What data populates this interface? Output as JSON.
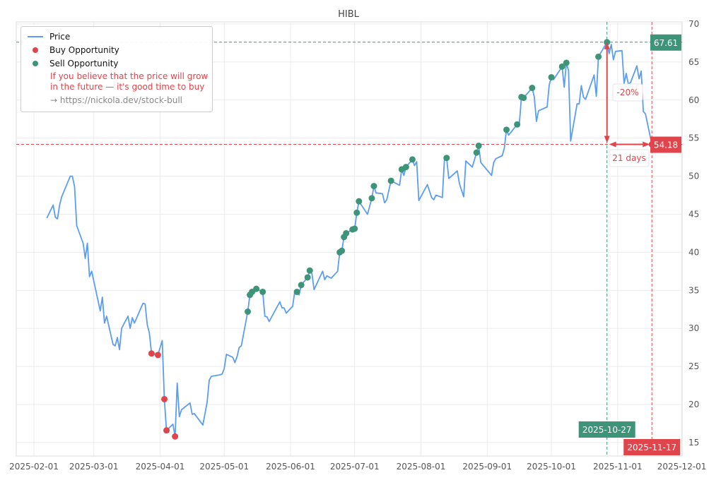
{
  "chart_data": {
    "type": "line",
    "title": "HIBL",
    "xlabel": "",
    "ylabel": "",
    "ylim": [
      13.5,
      70.3
    ],
    "xlim": [
      "2025-01-23",
      "2025-12-01"
    ],
    "y_ticks": [
      15,
      20,
      25,
      30,
      35,
      40,
      45,
      50,
      55,
      60,
      65,
      70
    ],
    "x_ticks": [
      "2025-02-01",
      "2025-03-01",
      "2025-04-01",
      "2025-05-01",
      "2025-06-01",
      "2025-07-01",
      "2025-08-01",
      "2025-09-01",
      "2025-10-01",
      "2025-11-01",
      "2025-12-01"
    ],
    "grid": true,
    "legend_placement": "top-left",
    "colors": {
      "price": "#5b9df0",
      "buy": "#e0454b",
      "sell": "#3d9479"
    },
    "legend": {
      "price": "Price",
      "buy": "Buy Opportunity",
      "sell": "Sell Opportunity",
      "note_line1": "If you believe that the price will grow",
      "note_line2": "in the future — it's good time to buy",
      "link": "→ https://nickola.dev/stock-bull"
    },
    "series": [
      {
        "name": "Price",
        "points": [
          [
            "2025-02-07",
            44.5
          ],
          [
            "2025-02-10",
            46.2
          ],
          [
            "2025-02-11",
            44.6
          ],
          [
            "2025-02-12",
            44.4
          ],
          [
            "2025-02-13",
            46.2
          ],
          [
            "2025-02-14",
            47.3
          ],
          [
            "2025-02-18",
            50.0
          ],
          [
            "2025-02-19",
            50.0
          ],
          [
            "2025-02-20",
            48.6
          ],
          [
            "2025-02-21",
            43.5
          ],
          [
            "2025-02-24",
            41.2
          ],
          [
            "2025-02-25",
            39.2
          ],
          [
            "2025-02-26",
            41.2
          ],
          [
            "2025-02-27",
            36.8
          ],
          [
            "2025-02-28",
            37.5
          ],
          [
            "2025-03-04",
            32.3
          ],
          [
            "2025-03-05",
            34.1
          ],
          [
            "2025-03-06",
            30.7
          ],
          [
            "2025-03-07",
            31.6
          ],
          [
            "2025-03-10",
            27.9
          ],
          [
            "2025-03-11",
            27.7
          ],
          [
            "2025-03-12",
            28.8
          ],
          [
            "2025-03-13",
            27.2
          ],
          [
            "2025-03-14",
            30.0
          ],
          [
            "2025-03-17",
            31.6
          ],
          [
            "2025-03-18",
            30.0
          ],
          [
            "2025-03-19",
            31.4
          ],
          [
            "2025-03-20",
            30.7
          ],
          [
            "2025-03-24",
            33.3
          ],
          [
            "2025-03-25",
            33.2
          ],
          [
            "2025-03-26",
            30.5
          ],
          [
            "2025-03-27",
            29.4
          ],
          [
            "2025-03-28",
            26.7
          ],
          [
            "2025-03-31",
            26.5
          ],
          [
            "2025-04-02",
            28.4
          ],
          [
            "2025-04-03",
            20.7
          ],
          [
            "2025-04-04",
            16.6
          ],
          [
            "2025-04-07",
            17.4
          ],
          [
            "2025-04-08",
            15.8
          ],
          [
            "2025-04-09",
            22.8
          ],
          [
            "2025-04-10",
            18.4
          ],
          [
            "2025-04-11",
            19.3
          ],
          [
            "2025-04-15",
            20.2
          ],
          [
            "2025-04-16",
            18.7
          ],
          [
            "2025-04-17",
            18.8
          ],
          [
            "2025-04-21",
            17.3
          ],
          [
            "2025-04-23",
            20.3
          ],
          [
            "2025-04-24",
            23.2
          ],
          [
            "2025-04-25",
            23.7
          ],
          [
            "2025-04-29",
            23.9
          ],
          [
            "2025-04-30",
            24.0
          ],
          [
            "2025-05-01",
            24.7
          ],
          [
            "2025-05-02",
            26.6
          ],
          [
            "2025-05-05",
            26.2
          ],
          [
            "2025-05-06",
            25.5
          ],
          [
            "2025-05-07",
            26.3
          ],
          [
            "2025-05-08",
            27.5
          ],
          [
            "2025-05-09",
            27.7
          ],
          [
            "2025-05-12",
            32.2
          ],
          [
            "2025-05-13",
            34.4
          ],
          [
            "2025-05-14",
            34.8
          ],
          [
            "2025-05-15",
            34.6
          ],
          [
            "2025-05-16",
            35.2
          ],
          [
            "2025-05-19",
            34.8
          ],
          [
            "2025-05-20",
            31.6
          ],
          [
            "2025-05-21",
            31.5
          ],
          [
            "2025-05-22",
            30.9
          ],
          [
            "2025-05-27",
            33.5
          ],
          [
            "2025-05-28",
            32.7
          ],
          [
            "2025-05-29",
            32.7
          ],
          [
            "2025-05-30",
            32.0
          ],
          [
            "2025-06-02",
            32.9
          ],
          [
            "2025-06-03",
            34.9
          ],
          [
            "2025-06-04",
            34.8
          ],
          [
            "2025-06-05",
            34.4
          ],
          [
            "2025-06-06",
            35.7
          ],
          [
            "2025-06-09",
            36.7
          ],
          [
            "2025-06-10",
            37.6
          ],
          [
            "2025-06-11",
            37.2
          ],
          [
            "2025-06-12",
            35.1
          ],
          [
            "2025-06-16",
            37.5
          ],
          [
            "2025-06-17",
            36.4
          ],
          [
            "2025-06-18",
            36.9
          ],
          [
            "2025-06-20",
            36.6
          ],
          [
            "2025-06-23",
            37.5
          ],
          [
            "2025-06-24",
            40.0
          ],
          [
            "2025-06-25",
            40.2
          ],
          [
            "2025-06-26",
            42.0
          ],
          [
            "2025-06-27",
            42.5
          ],
          [
            "2025-06-30",
            43.0
          ],
          [
            "2025-07-01",
            43.1
          ],
          [
            "2025-07-02",
            45.2
          ],
          [
            "2025-07-03",
            46.7
          ],
          [
            "2025-07-07",
            45.0
          ],
          [
            "2025-07-09",
            47.1
          ],
          [
            "2025-07-10",
            48.7
          ],
          [
            "2025-07-11",
            47.8
          ],
          [
            "2025-07-14",
            47.7
          ],
          [
            "2025-07-15",
            46.5
          ],
          [
            "2025-07-16",
            46.9
          ],
          [
            "2025-07-18",
            49.4
          ],
          [
            "2025-07-22",
            48.8
          ],
          [
            "2025-07-23",
            50.9
          ],
          [
            "2025-07-24",
            50.1
          ],
          [
            "2025-07-25",
            51.2
          ],
          [
            "2025-07-28",
            52.2
          ],
          [
            "2025-07-29",
            51.4
          ],
          [
            "2025-07-30",
            51.9
          ],
          [
            "2025-07-31",
            46.8
          ],
          [
            "2025-08-04",
            48.9
          ],
          [
            "2025-08-06",
            47.2
          ],
          [
            "2025-08-07",
            46.9
          ],
          [
            "2025-08-08",
            47.5
          ],
          [
            "2025-08-11",
            47.2
          ],
          [
            "2025-08-12",
            52.3
          ],
          [
            "2025-08-13",
            52.4
          ],
          [
            "2025-08-14",
            49.7
          ],
          [
            "2025-08-18",
            50.7
          ],
          [
            "2025-08-19",
            49.0
          ],
          [
            "2025-08-21",
            47.3
          ],
          [
            "2025-08-22",
            52.0
          ],
          [
            "2025-08-25",
            51.2
          ],
          [
            "2025-08-27",
            53.1
          ],
          [
            "2025-08-28",
            54.0
          ],
          [
            "2025-08-29",
            51.8
          ],
          [
            "2025-09-03",
            50.1
          ],
          [
            "2025-09-04",
            51.8
          ],
          [
            "2025-09-05",
            52.3
          ],
          [
            "2025-09-08",
            52.7
          ],
          [
            "2025-09-09",
            53.7
          ],
          [
            "2025-09-10",
            56.1
          ],
          [
            "2025-09-11",
            55.4
          ],
          [
            "2025-09-15",
            56.8
          ],
          [
            "2025-09-16",
            56.9
          ],
          [
            "2025-09-17",
            60.4
          ],
          [
            "2025-09-18",
            60.3
          ],
          [
            "2025-09-22",
            61.6
          ],
          [
            "2025-09-23",
            60.4
          ],
          [
            "2025-09-24",
            57.2
          ],
          [
            "2025-09-25",
            58.6
          ],
          [
            "2025-09-29",
            59.1
          ],
          [
            "2025-09-30",
            62.0
          ],
          [
            "2025-10-01",
            63.0
          ],
          [
            "2025-10-02",
            62.7
          ],
          [
            "2025-10-06",
            64.4
          ],
          [
            "2025-10-07",
            61.7
          ],
          [
            "2025-10-08",
            64.9
          ],
          [
            "2025-10-09",
            63.9
          ],
          [
            "2025-10-10",
            54.6
          ],
          [
            "2025-10-13",
            59.5
          ],
          [
            "2025-10-14",
            59.5
          ],
          [
            "2025-10-15",
            61.9
          ],
          [
            "2025-10-16",
            60.4
          ],
          [
            "2025-10-17",
            60.1
          ],
          [
            "2025-10-21",
            63.3
          ],
          [
            "2025-10-22",
            60.5
          ],
          [
            "2025-10-23",
            65.7
          ],
          [
            "2025-10-27",
            67.61
          ],
          [
            "2025-10-28",
            66.1
          ],
          [
            "2025-10-29",
            67.3
          ],
          [
            "2025-10-30",
            65.3
          ],
          [
            "2025-10-31",
            66.4
          ],
          [
            "2025-11-03",
            66.5
          ],
          [
            "2025-11-04",
            62.2
          ],
          [
            "2025-11-05",
            63.5
          ],
          [
            "2025-11-06",
            62.1
          ],
          [
            "2025-11-07",
            62.3
          ],
          [
            "2025-11-10",
            64.5
          ],
          [
            "2025-11-11",
            62.8
          ],
          [
            "2025-11-12",
            63.8
          ],
          [
            "2025-11-13",
            58.5
          ],
          [
            "2025-11-14",
            58.2
          ],
          [
            "2025-11-17",
            54.18
          ]
        ]
      }
    ],
    "buy_points": [
      [
        "2025-03-28",
        26.7
      ],
      [
        "2025-03-31",
        26.5
      ],
      [
        "2025-04-03",
        20.7
      ],
      [
        "2025-04-04",
        16.6
      ],
      [
        "2025-04-08",
        15.8
      ],
      [
        "2025-11-17",
        54.18
      ]
    ],
    "sell_points": [
      [
        "2025-05-12",
        32.2
      ],
      [
        "2025-05-13",
        34.4
      ],
      [
        "2025-05-14",
        34.8
      ],
      [
        "2025-05-16",
        35.2
      ],
      [
        "2025-05-19",
        34.8
      ],
      [
        "2025-06-04",
        34.8
      ],
      [
        "2025-06-06",
        35.7
      ],
      [
        "2025-06-09",
        36.7
      ],
      [
        "2025-06-10",
        37.6
      ],
      [
        "2025-06-24",
        40.0
      ],
      [
        "2025-06-25",
        40.2
      ],
      [
        "2025-06-26",
        42.0
      ],
      [
        "2025-06-27",
        42.5
      ],
      [
        "2025-06-30",
        43.0
      ],
      [
        "2025-07-01",
        43.1
      ],
      [
        "2025-07-02",
        45.2
      ],
      [
        "2025-07-03",
        46.7
      ],
      [
        "2025-07-09",
        47.1
      ],
      [
        "2025-07-10",
        48.7
      ],
      [
        "2025-07-18",
        49.4
      ],
      [
        "2025-07-23",
        50.9
      ],
      [
        "2025-07-25",
        51.2
      ],
      [
        "2025-07-28",
        52.2
      ],
      [
        "2025-08-13",
        52.4
      ],
      [
        "2025-08-27",
        53.1
      ],
      [
        "2025-08-28",
        54.0
      ],
      [
        "2025-09-10",
        56.1
      ],
      [
        "2025-09-15",
        56.8
      ],
      [
        "2025-09-17",
        60.4
      ],
      [
        "2025-09-18",
        60.3
      ],
      [
        "2025-09-22",
        61.6
      ],
      [
        "2025-10-01",
        63.0
      ],
      [
        "2025-10-06",
        64.4
      ],
      [
        "2025-10-08",
        64.9
      ],
      [
        "2025-10-23",
        65.7
      ],
      [
        "2025-10-27",
        67.61
      ]
    ],
    "annotations": {
      "high": {
        "date": "2025-10-27",
        "price": 67.61,
        "price_label": "67.61",
        "date_label": "2025-10-27"
      },
      "low": {
        "date": "2025-11-17",
        "price": 54.18,
        "price_label": "54.18",
        "date_label": "2025-11-17"
      },
      "change_label": "-20%",
      "duration_label": "21 days"
    }
  }
}
